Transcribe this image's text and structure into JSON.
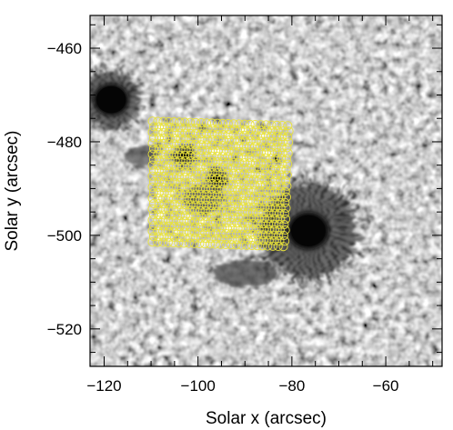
{
  "figure": {
    "x_axis": {
      "label": "Solar x (arcsec)",
      "range": [
        -123,
        -48
      ],
      "ticks": [
        -120,
        -100,
        -80,
        -60
      ],
      "tick_labels": [
        "−120",
        "−100",
        "−80",
        "−60"
      ],
      "minor_step": 5
    },
    "y_axis": {
      "label": "Solar y (arcsec)",
      "range": [
        -528,
        -453
      ],
      "ticks": [
        -460,
        -480,
        -500,
        -520
      ],
      "tick_labels": [
        "−460",
        "−480",
        "−500",
        "−520"
      ],
      "minor_step": 5
    },
    "image": {
      "subject": "solar photosphere granulation with sunspots",
      "colormap": "grayscale",
      "sunspots": [
        {
          "x": -76.5,
          "y": -499,
          "type": "large umbra with penumbra"
        },
        {
          "x": -118.5,
          "y": -471,
          "type": "umbra at left edge"
        },
        {
          "x": -96,
          "y": -488,
          "type": "small pore"
        },
        {
          "x": -103,
          "y": -483,
          "type": "small pore"
        }
      ]
    },
    "overlay": {
      "shape": "grid of small circles",
      "color": "#e8e23a",
      "region_corners_data": {
        "top_left": [
          -110,
          -475
        ],
        "top_right": [
          -80,
          -476
        ],
        "bottom_right": [
          -81,
          -503
        ],
        "bottom_left": [
          -110,
          -502
        ]
      },
      "columns": 26,
      "rows": 23
    }
  }
}
